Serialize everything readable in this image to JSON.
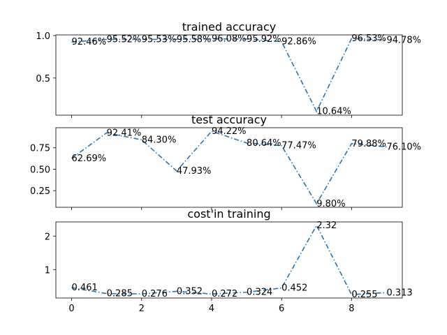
{
  "chart_data": [
    {
      "type": "line",
      "title": "trained accuracy",
      "x": [
        0,
        1,
        2,
        3,
        4,
        5,
        6,
        7,
        8,
        9
      ],
      "values": [
        0.9246,
        0.9552,
        0.9553,
        0.9558,
        0.9608,
        0.9592,
        0.9286,
        0.1064,
        0.9653,
        0.9478
      ],
      "data_labels": [
        "92.46%",
        "95.52%",
        "95.53%",
        "95.58%",
        "96.08%",
        "95.92%",
        "92.86%",
        "10.64%",
        "96.53%",
        "94.78%"
      ],
      "yticks": [
        0.5,
        1.0
      ],
      "ytick_labels": [
        "0.5",
        "1.0"
      ],
      "xlim": [
        -0.45,
        9.45
      ],
      "ylim": [
        0.063,
        1.008
      ],
      "grid": false,
      "line_color": "#1f77b4",
      "line_style": "dash-dot"
    },
    {
      "type": "line",
      "title": "test accuracy",
      "x": [
        0,
        1,
        2,
        3,
        4,
        5,
        6,
        7,
        8,
        9
      ],
      "values": [
        0.6269,
        0.9241,
        0.843,
        0.4793,
        0.9422,
        0.8064,
        0.7747,
        0.098,
        0.7988,
        0.761
      ],
      "data_labels": [
        "62.69%",
        "92.41%",
        "84.30%",
        "47.93%",
        "94.22%",
        "80.64%",
        "77.47%",
        "9.80%",
        "79.88%",
        "76.10%"
      ],
      "yticks": [
        0.25,
        0.5,
        0.75
      ],
      "ytick_labels": [
        "0.25",
        "0.50",
        "0.75"
      ],
      "xlim": [
        -0.45,
        9.45
      ],
      "ylim": [
        0.056,
        0.984
      ],
      "grid": false,
      "line_color": "#1f77b4",
      "line_style": "dash-dot"
    },
    {
      "type": "line",
      "title": "cost'in training",
      "x": [
        0,
        1,
        2,
        3,
        4,
        5,
        6,
        7,
        8,
        9
      ],
      "values": [
        0.461,
        0.285,
        0.276,
        0.352,
        0.272,
        0.324,
        0.452,
        2.32,
        0.255,
        0.313
      ],
      "data_labels": [
        "0.461",
        "0.285",
        "0.276",
        "0.352",
        "0.272",
        "0.324",
        "0.452",
        "2.32",
        "0.255",
        "0.313"
      ],
      "yticks": [
        1,
        2
      ],
      "ytick_labels": [
        "1",
        "2"
      ],
      "xticks": [
        0,
        2,
        4,
        6,
        8
      ],
      "xtick_labels": [
        "0",
        "2",
        "4",
        "6",
        "8"
      ],
      "xlim": [
        -0.45,
        9.45
      ],
      "ylim": [
        0.152,
        2.423
      ],
      "grid": false,
      "line_color": "#1f77b4",
      "line_style": "dash-dot"
    }
  ]
}
